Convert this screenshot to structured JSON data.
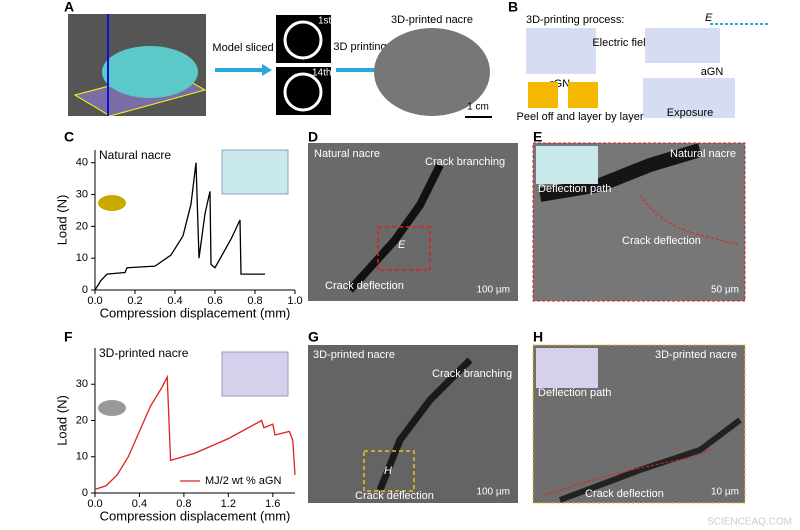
{
  "chart_data": [
    {
      "type": "line",
      "title": "Natural nacre",
      "x_label": "Compression displacement (mm)",
      "y_label": "Load (N)",
      "x": [
        0,
        0.03,
        0.06,
        0.15,
        0.16,
        0.3,
        0.38,
        0.44,
        0.48,
        0.505,
        0.51,
        0.52,
        0.55,
        0.575,
        0.58,
        0.6,
        0.68,
        0.725,
        0.73,
        0.75,
        0.85
      ],
      "series": [
        {
          "color": "#000000",
          "values": [
            0,
            3,
            5,
            5.5,
            7,
            7.5,
            11,
            17,
            27,
            40,
            30,
            10,
            24,
            31,
            8,
            7,
            16,
            22,
            5,
            5,
            5
          ]
        }
      ],
      "xlim": [
        0,
        1.0
      ],
      "xticks": [
        {
          "value": 0,
          "label": "0.0"
        },
        0.2,
        0.4,
        0.6,
        0.8,
        {
          "value": 1,
          "label": "1.0"
        }
      ],
      "ylim": [
        0,
        44
      ],
      "yticks": [
        0,
        10,
        20,
        30,
        40
      ]
    },
    {
      "type": "line",
      "title": "3D-printed nacre",
      "x_label": "Compression displacement (mm)",
      "y_label": "Load (N)",
      "x": [
        0,
        0.1,
        0.2,
        0.3,
        0.4,
        0.5,
        0.6,
        0.65,
        0.68,
        0.9,
        1.2,
        1.5,
        1.52,
        1.6,
        1.62,
        1.75,
        1.78,
        1.8
      ],
      "series": [
        {
          "name": "MJ/2 wt % aGN",
          "color": "#e02020",
          "values": [
            1,
            2,
            5,
            10,
            17,
            24,
            29,
            32,
            9,
            11,
            15,
            20,
            18,
            19,
            16,
            17,
            14.5,
            5
          ]
        }
      ],
      "xlim": [
        0,
        1.8
      ],
      "xticks": [
        {
          "value": 0,
          "label": "0.0"
        },
        0.4,
        0.8,
        1.2,
        1.6
      ],
      "ylim": [
        0,
        40
      ],
      "yticks": [
        0,
        10,
        20,
        30
      ],
      "legend": "lower-right"
    }
  ],
  "panels": {
    "A": {
      "letter": "A",
      "model_sliced": "Model sliced",
      "first": "1st",
      "fourteenth": "14th",
      "printing": "3D printing",
      "product": "3D-printed nacre",
      "scale": "1 cm"
    },
    "B": {
      "letter": "B",
      "process": "3D-printing process:",
      "field_symbol": "E",
      "rgn": "rGN",
      "electric_field": "Electric field",
      "agn": "aGN",
      "exposure": "Exposure",
      "peel": "Peel off and layer by layer"
    },
    "C": {
      "letter": "C"
    },
    "D": {
      "letter": "D",
      "title": "Natural nacre",
      "branching": "Crack branching",
      "inset_ref": "E",
      "deflection": "Crack deflection",
      "scale": "100 µm"
    },
    "E": {
      "letter": "E",
      "path": "Deflection path",
      "title": "Natural nacre",
      "deflection": "Crack deflection",
      "scale": "50 µm"
    },
    "F": {
      "letter": "F"
    },
    "G": {
      "letter": "G",
      "title": "3D-printed nacre",
      "branching": "Crack branching",
      "inset_ref": "H",
      "deflection": "Crack deflection",
      "scale": "100 µm"
    },
    "H": {
      "letter": "H",
      "path": "Deflection path",
      "title": "3D-printed nacre",
      "deflection": "Crack deflection",
      "scale": "10 µm"
    }
  },
  "watermark": "SCIENCEAQ.COM"
}
